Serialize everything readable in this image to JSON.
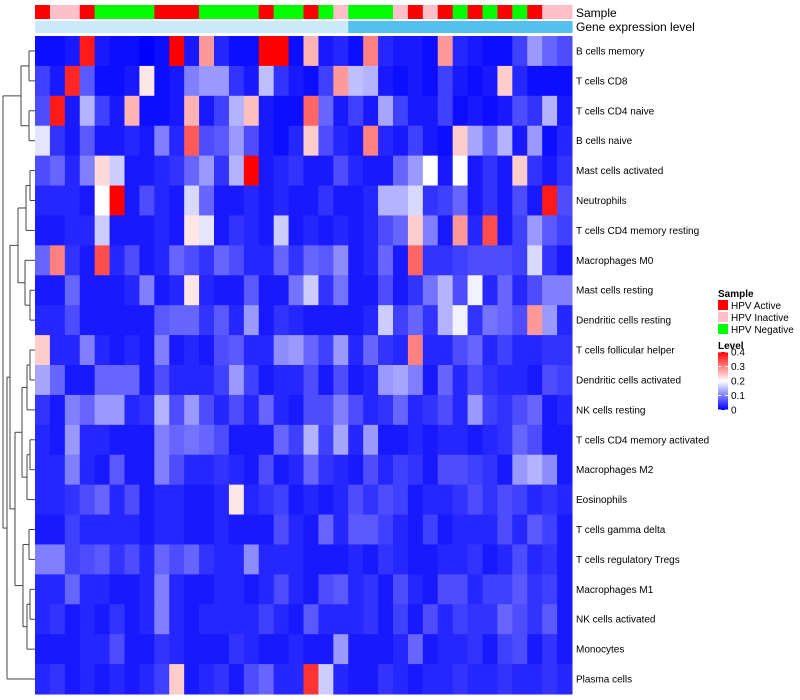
{
  "chart_data": {
    "type": "heatmap",
    "title": "",
    "rows": [
      "B cells memory",
      "T cells CD8",
      "T cells CD4 naive",
      "B cells naive",
      "Mast cells activated",
      "Neutrophils",
      "T cells CD4 memory resting",
      "Macrophages M0",
      "Mast cells resting",
      "Dendritic cells resting",
      "T cells follicular helper",
      "Dendritic cells activated",
      "NK cells resting",
      "T cells CD4 memory activated",
      "Macrophages M2",
      "Eosinophils",
      "T cells gamma delta",
      "T cells regulatory  Tregs",
      "Macrophages M1",
      "NK cells activated",
      "Monocytes",
      "Plasma cells"
    ],
    "n_columns": 36,
    "annotation_labels": {
      "sample": "Sample",
      "gene_expression": "Gene expression level"
    },
    "sample_groups": [
      "A",
      "I",
      "I",
      "A",
      "N",
      "N",
      "N",
      "N",
      "A",
      "A",
      "A",
      "N",
      "N",
      "N",
      "N",
      "A",
      "N",
      "N",
      "A",
      "N",
      "I",
      "N",
      "N",
      "N",
      "I",
      "A",
      "I",
      "A",
      "N",
      "A",
      "N",
      "A",
      "N",
      "A",
      "I",
      "I"
    ],
    "gene_expression_groups": [
      "L",
      "L",
      "L",
      "L",
      "L",
      "L",
      "L",
      "L",
      "L",
      "L",
      "L",
      "L",
      "L",
      "L",
      "L",
      "L",
      "L",
      "L",
      "L",
      "L",
      "L",
      "H",
      "H",
      "H",
      "H",
      "H",
      "H",
      "H",
      "H",
      "H",
      "H",
      "H",
      "H",
      "H",
      "H",
      "H"
    ],
    "sample_colors": {
      "A": "#ff0000",
      "I": "#ffc0cb",
      "N": "#00ff00"
    },
    "gene_expression_colors": {
      "L": "#cce9f9",
      "H": "#53c0f0"
    },
    "values": [
      [
        0.01,
        0.01,
        0.02,
        0.38,
        0.02,
        0.01,
        0.01,
        0.0,
        0.01,
        0.4,
        0.02,
        0.28,
        0.03,
        0.01,
        0.01,
        0.4,
        0.4,
        0.01,
        0.26,
        0.02,
        0.03,
        0.01,
        0.3,
        0.03,
        0.02,
        0.02,
        0.01,
        0.28,
        0.03,
        0.02,
        0.01,
        0.01,
        0.05,
        0.12,
        0.08,
        0.06
      ],
      [
        0.05,
        0.02,
        0.37,
        0.07,
        0.01,
        0.01,
        0.02,
        0.22,
        0.01,
        0.02,
        0.1,
        0.12,
        0.12,
        0.04,
        0.02,
        0.15,
        0.04,
        0.02,
        0.01,
        0.05,
        0.28,
        0.15,
        0.14,
        0.02,
        0.01,
        0.02,
        0.01,
        0.05,
        0.02,
        0.01,
        0.02,
        0.24,
        0.03,
        0.01,
        0.01,
        0.01
      ],
      [
        0.06,
        0.38,
        0.02,
        0.14,
        0.05,
        0.02,
        0.26,
        0.01,
        0.01,
        0.02,
        0.26,
        0.02,
        0.05,
        0.14,
        0.25,
        0.02,
        0.01,
        0.01,
        0.32,
        0.08,
        0.02,
        0.05,
        0.02,
        0.13,
        0.05,
        0.02,
        0.02,
        0.05,
        0.01,
        0.02,
        0.01,
        0.02,
        0.06,
        0.04,
        0.14,
        0.02
      ],
      [
        0.18,
        0.04,
        0.02,
        0.07,
        0.02,
        0.02,
        0.03,
        0.02,
        0.1,
        0.03,
        0.33,
        0.06,
        0.07,
        0.12,
        0.06,
        0.02,
        0.01,
        0.03,
        0.24,
        0.06,
        0.03,
        0.02,
        0.3,
        0.03,
        0.02,
        0.05,
        0.02,
        0.01,
        0.24,
        0.13,
        0.08,
        0.14,
        0.02,
        0.12,
        0.01,
        0.03
      ],
      [
        0.06,
        0.08,
        0.03,
        0.1,
        0.23,
        0.16,
        0.02,
        0.02,
        0.03,
        0.04,
        0.08,
        0.12,
        0.04,
        0.14,
        0.4,
        0.02,
        0.03,
        0.04,
        0.02,
        0.02,
        0.06,
        0.03,
        0.02,
        0.02,
        0.08,
        0.12,
        0.2,
        0.02,
        0.2,
        0.02,
        0.04,
        0.02,
        0.24,
        0.04,
        0.02,
        0.04
      ],
      [
        0.03,
        0.03,
        0.03,
        0.02,
        0.2,
        0.4,
        0.02,
        0.06,
        0.03,
        0.02,
        0.17,
        0.08,
        0.02,
        0.02,
        0.03,
        0.02,
        0.03,
        0.02,
        0.02,
        0.04,
        0.02,
        0.02,
        0.03,
        0.14,
        0.14,
        0.17,
        0.04,
        0.05,
        0.08,
        0.02,
        0.04,
        0.02,
        0.06,
        0.02,
        0.38,
        0.06
      ],
      [
        0.02,
        0.02,
        0.03,
        0.03,
        0.16,
        0.02,
        0.02,
        0.02,
        0.03,
        0.02,
        0.22,
        0.18,
        0.02,
        0.04,
        0.03,
        0.02,
        0.16,
        0.02,
        0.03,
        0.02,
        0.03,
        0.02,
        0.03,
        0.06,
        0.08,
        0.24,
        0.1,
        0.02,
        0.28,
        0.03,
        0.34,
        0.02,
        0.05,
        0.12,
        0.07,
        0.05
      ],
      [
        0.08,
        0.3,
        0.04,
        0.02,
        0.34,
        0.03,
        0.06,
        0.02,
        0.03,
        0.08,
        0.06,
        0.04,
        0.08,
        0.06,
        0.03,
        0.03,
        0.08,
        0.04,
        0.08,
        0.07,
        0.11,
        0.02,
        0.03,
        0.08,
        0.02,
        0.32,
        0.04,
        0.04,
        0.05,
        0.06,
        0.06,
        0.06,
        0.05,
        0.17,
        0.04,
        0.02
      ],
      [
        0.02,
        0.02,
        0.08,
        0.02,
        0.02,
        0.02,
        0.03,
        0.1,
        0.02,
        0.03,
        0.22,
        0.03,
        0.02,
        0.02,
        0.07,
        0.02,
        0.02,
        0.09,
        0.16,
        0.04,
        0.09,
        0.02,
        0.02,
        0.06,
        0.02,
        0.04,
        0.09,
        0.14,
        0.06,
        0.19,
        0.03,
        0.08,
        0.03,
        0.06,
        0.1,
        0.1
      ],
      [
        0.03,
        0.03,
        0.06,
        0.02,
        0.02,
        0.02,
        0.02,
        0.02,
        0.07,
        0.08,
        0.08,
        0.04,
        0.07,
        0.03,
        0.12,
        0.02,
        0.04,
        0.03,
        0.02,
        0.02,
        0.02,
        0.02,
        0.03,
        0.16,
        0.05,
        0.08,
        0.04,
        0.14,
        0.19,
        0.04,
        0.09,
        0.08,
        0.06,
        0.28,
        0.12,
        0.03
      ],
      [
        0.24,
        0.03,
        0.03,
        0.1,
        0.03,
        0.02,
        0.03,
        0.02,
        0.1,
        0.02,
        0.03,
        0.02,
        0.06,
        0.07,
        0.03,
        0.03,
        0.11,
        0.12,
        0.08,
        0.05,
        0.12,
        0.03,
        0.08,
        0.04,
        0.03,
        0.3,
        0.03,
        0.03,
        0.06,
        0.08,
        0.03,
        0.05,
        0.03,
        0.03,
        0.04,
        0.04
      ],
      [
        0.13,
        0.08,
        0.02,
        0.02,
        0.08,
        0.08,
        0.08,
        0.02,
        0.06,
        0.03,
        0.03,
        0.03,
        0.05,
        0.12,
        0.05,
        0.02,
        0.03,
        0.03,
        0.06,
        0.02,
        0.06,
        0.02,
        0.03,
        0.12,
        0.13,
        0.1,
        0.02,
        0.08,
        0.03,
        0.06,
        0.04,
        0.03,
        0.03,
        0.02,
        0.06,
        0.05
      ],
      [
        0.04,
        0.02,
        0.1,
        0.08,
        0.12,
        0.12,
        0.03,
        0.04,
        0.14,
        0.06,
        0.12,
        0.06,
        0.03,
        0.06,
        0.03,
        0.08,
        0.03,
        0.02,
        0.06,
        0.06,
        0.1,
        0.06,
        0.03,
        0.04,
        0.08,
        0.03,
        0.04,
        0.06,
        0.03,
        0.12,
        0.05,
        0.04,
        0.06,
        0.08,
        0.02,
        0.03
      ],
      [
        0.03,
        0.02,
        0.12,
        0.03,
        0.03,
        0.02,
        0.02,
        0.02,
        0.1,
        0.08,
        0.09,
        0.08,
        0.06,
        0.02,
        0.02,
        0.02,
        0.08,
        0.05,
        0.14,
        0.05,
        0.13,
        0.03,
        0.12,
        0.02,
        0.02,
        0.03,
        0.02,
        0.03,
        0.03,
        0.02,
        0.03,
        0.04,
        0.08,
        0.06,
        0.02,
        0.02
      ],
      [
        0.03,
        0.03,
        0.1,
        0.03,
        0.02,
        0.07,
        0.02,
        0.02,
        0.1,
        0.06,
        0.03,
        0.03,
        0.04,
        0.03,
        0.02,
        0.06,
        0.02,
        0.03,
        0.08,
        0.04,
        0.03,
        0.02,
        0.06,
        0.03,
        0.05,
        0.04,
        0.02,
        0.06,
        0.06,
        0.05,
        0.04,
        0.02,
        0.12,
        0.14,
        0.11,
        0.02
      ],
      [
        0.03,
        0.03,
        0.04,
        0.06,
        0.08,
        0.03,
        0.06,
        0.02,
        0.03,
        0.03,
        0.02,
        0.02,
        0.03,
        0.22,
        0.03,
        0.04,
        0.05,
        0.02,
        0.03,
        0.02,
        0.03,
        0.06,
        0.04,
        0.06,
        0.05,
        0.02,
        0.03,
        0.03,
        0.04,
        0.06,
        0.04,
        0.06,
        0.05,
        0.03,
        0.04,
        0.03
      ],
      [
        0.02,
        0.02,
        0.05,
        0.03,
        0.03,
        0.03,
        0.03,
        0.02,
        0.03,
        0.03,
        0.02,
        0.02,
        0.03,
        0.02,
        0.02,
        0.02,
        0.06,
        0.03,
        0.02,
        0.08,
        0.03,
        0.07,
        0.07,
        0.05,
        0.03,
        0.02,
        0.05,
        0.02,
        0.03,
        0.03,
        0.03,
        0.06,
        0.03,
        0.07,
        0.05,
        0.02
      ],
      [
        0.1,
        0.1,
        0.05,
        0.06,
        0.07,
        0.04,
        0.06,
        0.03,
        0.08,
        0.06,
        0.08,
        0.04,
        0.03,
        0.03,
        0.11,
        0.03,
        0.03,
        0.03,
        0.02,
        0.02,
        0.02,
        0.03,
        0.02,
        0.04,
        0.03,
        0.02,
        0.02,
        0.03,
        0.03,
        0.04,
        0.02,
        0.03,
        0.06,
        0.03,
        0.04,
        0.02
      ],
      [
        0.03,
        0.03,
        0.08,
        0.03,
        0.03,
        0.02,
        0.02,
        0.03,
        0.1,
        0.03,
        0.02,
        0.02,
        0.03,
        0.03,
        0.02,
        0.03,
        0.06,
        0.03,
        0.02,
        0.06,
        0.07,
        0.03,
        0.04,
        0.02,
        0.06,
        0.03,
        0.02,
        0.06,
        0.06,
        0.03,
        0.05,
        0.05,
        0.07,
        0.04,
        0.05,
        0.02
      ],
      [
        0.03,
        0.04,
        0.02,
        0.03,
        0.02,
        0.04,
        0.02,
        0.03,
        0.1,
        0.03,
        0.02,
        0.03,
        0.03,
        0.03,
        0.03,
        0.05,
        0.03,
        0.02,
        0.07,
        0.03,
        0.03,
        0.03,
        0.04,
        0.02,
        0.05,
        0.02,
        0.06,
        0.03,
        0.05,
        0.04,
        0.04,
        0.08,
        0.06,
        0.04,
        0.07,
        0.02
      ],
      [
        0.02,
        0.02,
        0.02,
        0.03,
        0.03,
        0.06,
        0.02,
        0.02,
        0.04,
        0.03,
        0.02,
        0.02,
        0.02,
        0.04,
        0.03,
        0.02,
        0.02,
        0.03,
        0.02,
        0.02,
        0.12,
        0.02,
        0.02,
        0.02,
        0.03,
        0.08,
        0.02,
        0.03,
        0.03,
        0.04,
        0.02,
        0.05,
        0.06,
        0.02,
        0.04,
        0.02
      ],
      [
        0.03,
        0.04,
        0.02,
        0.03,
        0.02,
        0.03,
        0.02,
        0.03,
        0.05,
        0.24,
        0.02,
        0.03,
        0.04,
        0.02,
        0.06,
        0.08,
        0.03,
        0.03,
        0.36,
        0.16,
        0.03,
        0.02,
        0.02,
        0.04,
        0.03,
        0.02,
        0.03,
        0.03,
        0.04,
        0.03,
        0.03,
        0.04,
        0.03,
        0.03,
        0.04,
        0.03
      ]
    ],
    "color_scale": {
      "min": 0,
      "mid": 0.2,
      "max": 0.4,
      "low_color": "#0000ff",
      "mid_color": "#ffffff",
      "high_color": "#ff0000"
    },
    "legend": {
      "position": "right",
      "sample": {
        "title": "Sample",
        "items": [
          {
            "key": "A",
            "label": "HPV Active"
          },
          {
            "key": "I",
            "label": "HPV Inactive"
          },
          {
            "key": "N",
            "label": "HPV Negative"
          }
        ]
      },
      "level": {
        "title": "Level",
        "ticks": [
          0.4,
          0.3,
          0.2,
          0.1,
          0
        ],
        "tick_labels": [
          "0.4",
          "0.3",
          "0.2",
          "0.1",
          "0"
        ]
      }
    },
    "row_dendrogram": true
  }
}
